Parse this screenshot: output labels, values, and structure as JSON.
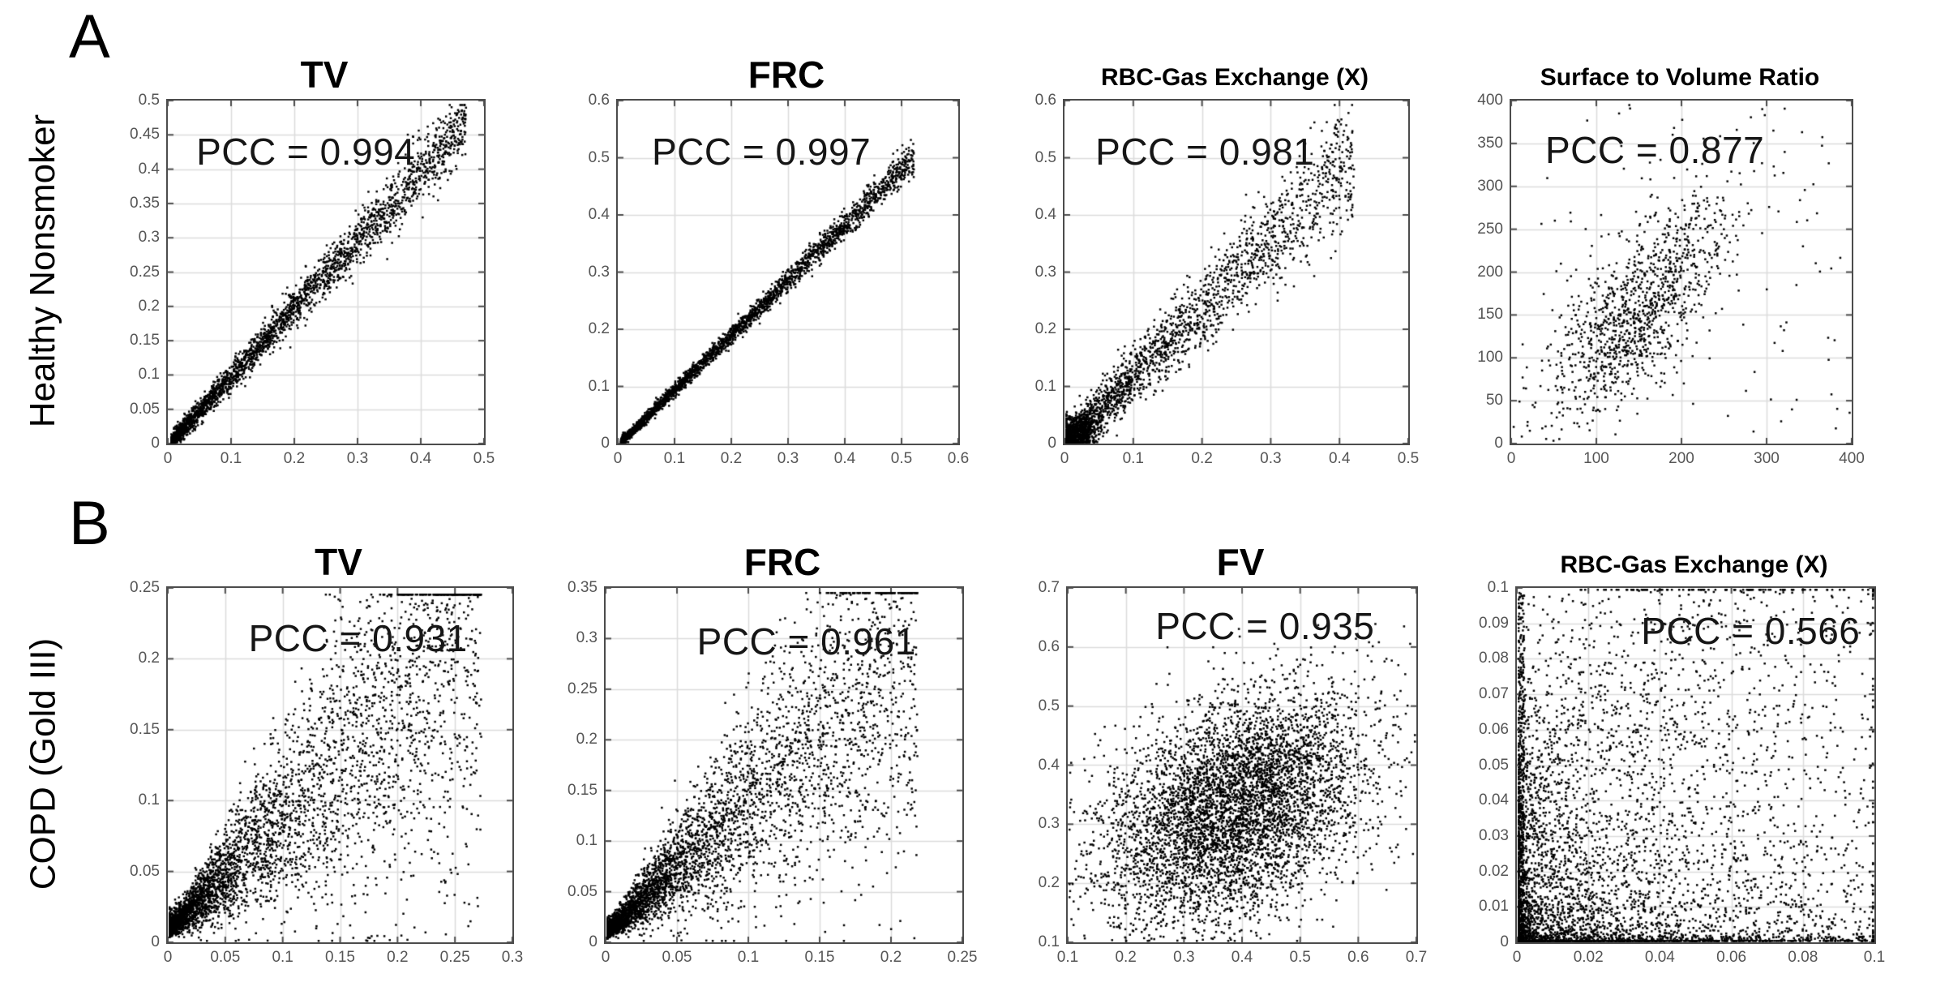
{
  "figure": {
    "row_a": {
      "letter": "A",
      "label": "Healthy Nonsmoker"
    },
    "row_b": {
      "letter": "B",
      "label": "COPD (Gold III)"
    }
  },
  "colors": {
    "background": "#ffffff",
    "point": "#000000",
    "grid_line": "#dcdcdc",
    "axis_box": "#4c4c4c",
    "tick_label": "#555555",
    "title_text": "#000000",
    "pcc_text": "#161616"
  },
  "chart_data": [
    {
      "type": "scatter",
      "row": "A",
      "title": "TV",
      "pcc_label": "PCC = 0.994",
      "pcc": 0.994,
      "pcc_position": "top-left",
      "xlim": [
        0,
        0.5
      ],
      "ylim": [
        0,
        0.5
      ],
      "x_tick_labels": [
        "0",
        "0.1",
        "0.2",
        "0.3",
        "0.4",
        "0.5"
      ],
      "y_tick_labels": [
        "0",
        "0.05",
        "0.1",
        "0.15",
        "0.2",
        "0.25",
        "0.3",
        "0.35",
        "0.4",
        "0.45",
        "0.5"
      ],
      "grid": true,
      "n_points": 2600,
      "distribution": {
        "kind": "diag",
        "x_start": 0.004,
        "x_max": 0.47,
        "pow": 1.55,
        "slope": 1.0,
        "noise": 0.011,
        "noise_grow": 1.8
      }
    },
    {
      "type": "scatter",
      "row": "A",
      "title": "FRC",
      "pcc_label": "PCC = 0.997",
      "pcc": 0.997,
      "pcc_position": "top-left",
      "xlim": [
        0,
        0.6
      ],
      "ylim": [
        0,
        0.6
      ],
      "x_tick_labels": [
        "0",
        "0.1",
        "0.2",
        "0.3",
        "0.4",
        "0.5",
        "0.6"
      ],
      "y_tick_labels": [
        "0",
        "0.1",
        "0.2",
        "0.3",
        "0.4",
        "0.5",
        "0.6"
      ],
      "grid": true,
      "n_points": 2600,
      "distribution": {
        "kind": "diag",
        "x_start": 0.004,
        "x_max": 0.52,
        "pow": 1.5,
        "slope": 0.965,
        "noise": 0.007,
        "noise_grow": 1.5
      }
    },
    {
      "type": "scatter",
      "row": "A",
      "title": "RBC-Gas Exchange (X)",
      "pcc_label": "PCC = 0.981",
      "pcc": 0.981,
      "pcc_position": "top-left",
      "xlim": [
        0,
        0.5
      ],
      "ylim": [
        0,
        0.6
      ],
      "x_tick_labels": [
        "0",
        "0.1",
        "0.2",
        "0.3",
        "0.4",
        "0.5"
      ],
      "y_tick_labels": [
        "0",
        "0.1",
        "0.2",
        "0.3",
        "0.4",
        "0.5",
        "0.6"
      ],
      "grid": true,
      "n_points": 2180,
      "distribution": {
        "kind": "diag",
        "x_start": 0.002,
        "x_max": 0.42,
        "pow": 1.85,
        "slope": 1.2,
        "noise": 0.03,
        "noise_grow": 1.3,
        "extra_blob": {
          "n": 430,
          "cx": 0.018,
          "cy": 0.02,
          "sx": 0.014,
          "sy": 0.017
        }
      }
    },
    {
      "type": "scatter",
      "row": "A",
      "title": "Surface to Volume Ratio",
      "pcc_label": "PCC = 0.877",
      "pcc": 0.877,
      "pcc_position": "top-left",
      "xlim": [
        0,
        400
      ],
      "ylim": [
        0,
        400
      ],
      "x_tick_labels": [
        "0",
        "100",
        "200",
        "300",
        "400"
      ],
      "y_tick_labels": [
        "0",
        "50",
        "100",
        "150",
        "200",
        "250",
        "300",
        "350",
        "400"
      ],
      "grid": true,
      "n_points": 1240,
      "distribution": {
        "kind": "blob",
        "cx": 148,
        "cy": 158,
        "sx": 53,
        "sy": 62,
        "rho": 0.72,
        "outliers": 120,
        "out_x": [
          30,
          398
        ],
        "out_y": [
          15,
          398
        ]
      }
    },
    {
      "type": "scatter",
      "row": "B",
      "title": "TV",
      "pcc_label": "PCC = 0.931",
      "pcc": 0.931,
      "pcc_position": "top-right",
      "xlim": [
        0,
        0.3
      ],
      "ylim": [
        0,
        0.25
      ],
      "x_tick_labels": [
        "0",
        "0.05",
        "0.1",
        "0.15",
        "0.2",
        "0.25",
        "0.3"
      ],
      "y_tick_labels": [
        "0",
        "0.05",
        "0.1",
        "0.15",
        "0.2",
        "0.25"
      ],
      "grid": true,
      "n_points": 4300,
      "distribution": {
        "kind": "cone",
        "x_max": 0.272,
        "pow": 2.1,
        "slope": 0.78,
        "rel_spread": 0.42,
        "abs_noise": 0.011,
        "y_max": 0.246
      }
    },
    {
      "type": "scatter",
      "row": "B",
      "title": "FRC",
      "pcc_label": "PCC = 0.961",
      "pcc": 0.961,
      "pcc_position": "top-right",
      "xlim": [
        0,
        0.25
      ],
      "ylim": [
        0,
        0.35
      ],
      "x_tick_labels": [
        "0",
        "0.05",
        "0.1",
        "0.15",
        "0.2",
        "0.25"
      ],
      "y_tick_labels": [
        "0",
        "0.05",
        "0.1",
        "0.15",
        "0.2",
        "0.25",
        "0.3",
        "0.35"
      ],
      "grid": true,
      "n_points": 4300,
      "distribution": {
        "kind": "cone",
        "x_max": 0.218,
        "pow": 2.1,
        "slope": 1.28,
        "rel_spread": 0.38,
        "abs_noise": 0.012,
        "y_max": 0.346
      }
    },
    {
      "type": "scatter",
      "row": "B",
      "title": "FV",
      "pcc_label": "PCC = 0.935",
      "pcc": 0.935,
      "pcc_position": "top-right",
      "xlim": [
        0.1,
        0.7
      ],
      "ylim": [
        0.1,
        0.7
      ],
      "x_tick_labels": [
        "0.1",
        "0.2",
        "0.3",
        "0.4",
        "0.5",
        "0.6",
        "0.7"
      ],
      "y_tick_labels": [
        "0.1",
        "0.2",
        "0.3",
        "0.4",
        "0.5",
        "0.6",
        "0.7"
      ],
      "grid": true,
      "n_points": 5200,
      "distribution": {
        "kind": "blob",
        "cx": 0.385,
        "cy": 0.325,
        "sx": 0.115,
        "sy": 0.1,
        "rho": 0.42,
        "outliers": 0
      }
    },
    {
      "type": "scatter",
      "row": "B",
      "title": "RBC-Gas Exchange (X)",
      "pcc_label": "PCC = 0.566",
      "pcc": 0.566,
      "pcc_position": "top-right",
      "xlim": [
        0,
        0.1
      ],
      "ylim": [
        0,
        0.1
      ],
      "x_tick_labels": [
        "0",
        "0.02",
        "0.04",
        "0.06",
        "0.08",
        "0.1"
      ],
      "y_tick_labels": [
        "0",
        "0.01",
        "0.02",
        "0.03",
        "0.04",
        "0.05",
        "0.06",
        "0.07",
        "0.08",
        "0.09",
        "0.1"
      ],
      "grid": true,
      "n_points": 5300,
      "distribution": {
        "kind": "corner",
        "col_frac": 0.07,
        "row_frac": 0.05,
        "sparse_frac": 0.17,
        "pow": 2.5
      }
    }
  ]
}
